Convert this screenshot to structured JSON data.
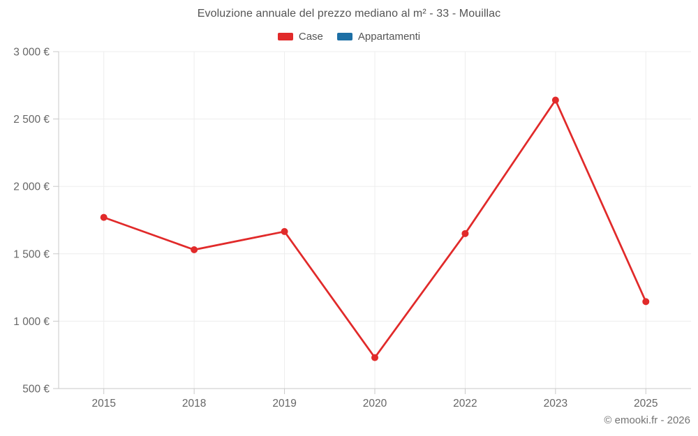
{
  "header": {
    "title": "Evoluzione annuale del prezzo mediano al m² - 33 - Mouillac"
  },
  "legend": {
    "items": [
      {
        "label": "Case",
        "color": "#e12a2a"
      },
      {
        "label": "Appartamenti",
        "color": "#1d6fa5"
      }
    ]
  },
  "footer": {
    "credit": "© emooki.fr - 2026"
  },
  "chart_data": {
    "type": "line",
    "title": "Evoluzione annuale del prezzo mediano al m² - 33 - Mouillac",
    "categories": [
      "2015",
      "2018",
      "2019",
      "2020",
      "2022",
      "2023",
      "2025"
    ],
    "series": [
      {
        "name": "Case",
        "color": "#e12a2a",
        "values": [
          1770,
          1530,
          1665,
          730,
          1650,
          2640,
          1145
        ]
      },
      {
        "name": "Appartamenti",
        "color": "#1d6fa5",
        "values": []
      }
    ],
    "xlabel": "",
    "ylabel": "",
    "ylim": [
      500,
      3000
    ],
    "y_step": 500,
    "y_tick_suffix": "€",
    "grid": true,
    "legend_position": "top",
    "colors": {
      "grid_line": "#ededed",
      "axis_line": "#c9c9c9",
      "tick_text": "#666666"
    }
  }
}
